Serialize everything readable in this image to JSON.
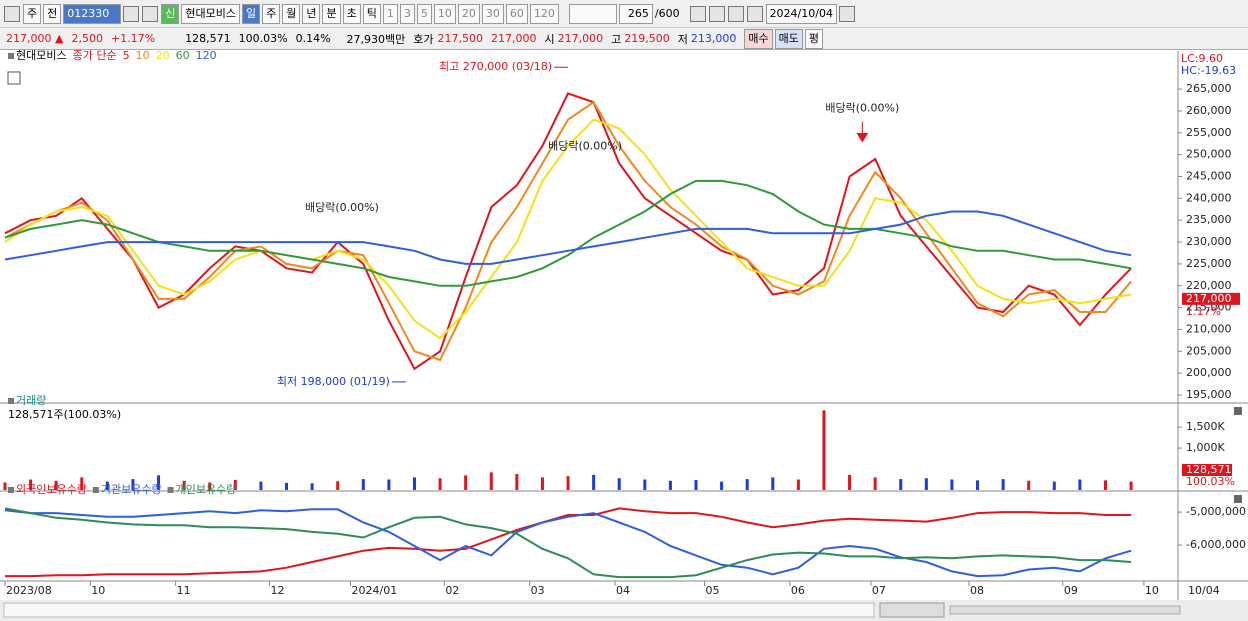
{
  "toolbar": {
    "view": "주",
    "market": "전",
    "code": "012330",
    "badge": "신",
    "name": "현대모비스",
    "periods": [
      "일",
      "주",
      "월",
      "년",
      "분",
      "초",
      "틱"
    ],
    "intervals": [
      "1",
      "3",
      "5",
      "10",
      "20",
      "30",
      "60",
      "120"
    ],
    "count": "265",
    "max": "/600",
    "date": "2024/10/04"
  },
  "quote": {
    "price": "217,000 ▲",
    "change": "2,500",
    "rate": "+1.17%",
    "volume": "128,571",
    "volume_ratio": "100.03%",
    "turnover": "0.14%",
    "amount": "27,930백만",
    "bid_label": "호가",
    "ask": "217,500",
    "bid": "217,000",
    "open_label": "시",
    "open": "217,000",
    "high_label": "고",
    "high": "219,500",
    "low_label": "저",
    "low": "213,000",
    "buy": "매수",
    "sell": "매도",
    "avg": "평"
  },
  "chart_data": [
    {
      "type": "line",
      "title": "현대모비스",
      "subtitle": "종가 단순",
      "lc": "LC:9.60",
      "hc": "HC:-19.63",
      "x": [
        0,
        6,
        12,
        18,
        24,
        30,
        36,
        42,
        48,
        54,
        60,
        66,
        72,
        78,
        84,
        90,
        96,
        102,
        108,
        114,
        120,
        126,
        132,
        138,
        144,
        150,
        156,
        162,
        168,
        174,
        180,
        186,
        192,
        198,
        204,
        210,
        216,
        222,
        228,
        234,
        240,
        246,
        252,
        258,
        264
      ],
      "xlim": [
        0,
        275
      ],
      "ylim": [
        193400,
        271200
      ],
      "yticks": [
        {
          "value": 195000,
          "label": "195,000"
        },
        {
          "value": 200000,
          "label": "200,000"
        },
        {
          "value": 205000,
          "label": "205,000"
        },
        {
          "value": 210000,
          "label": "210,000"
        },
        {
          "value": 215000,
          "label": "215,000"
        },
        {
          "value": 220000,
          "label": "220,000"
        },
        {
          "value": 225000,
          "label": "225,000"
        },
        {
          "value": 230000,
          "label": "230,000"
        },
        {
          "value": 235000,
          "label": "235,000"
        },
        {
          "value": 240000,
          "label": "240,000"
        },
        {
          "value": 245000,
          "label": "245,000"
        },
        {
          "value": 250000,
          "label": "250,000"
        },
        {
          "value": 255000,
          "label": "255,000"
        },
        {
          "value": 260000,
          "label": "260,000"
        },
        {
          "value": 265000,
          "label": "265,000"
        }
      ],
      "series": [
        {
          "name": "5",
          "color": "#e0141e",
          "values": [
            232000,
            235000,
            236000,
            240000,
            233000,
            226000,
            215000,
            218000,
            224000,
            229000,
            228000,
            224000,
            223000,
            230000,
            225000,
            212000,
            201000,
            205000,
            222000,
            238000,
            243000,
            252000,
            264000,
            262000,
            248000,
            240000,
            236000,
            232000,
            228000,
            226000,
            218000,
            219000,
            224000,
            245000,
            249000,
            236000,
            229000,
            222000,
            215000,
            214000,
            220000,
            218000,
            211000,
            218000,
            224000
          ]
        },
        {
          "name": "10",
          "color": "#f0881e",
          "values": [
            231000,
            234000,
            237000,
            239000,
            235000,
            226000,
            217000,
            217000,
            222000,
            228000,
            229000,
            225000,
            224000,
            228000,
            227000,
            216000,
            205000,
            203000,
            215000,
            230000,
            238000,
            248000,
            258000,
            262000,
            252000,
            244000,
            238000,
            234000,
            229000,
            226000,
            220000,
            218000,
            221000,
            236000,
            246000,
            240000,
            232000,
            224000,
            216000,
            213000,
            218000,
            219000,
            214000,
            214000,
            221000
          ]
        },
        {
          "name": "20",
          "color": "#f2e21a",
          "values": [
            230000,
            234000,
            237000,
            238000,
            236000,
            228000,
            220000,
            218000,
            221000,
            226000,
            228000,
            227000,
            226000,
            228000,
            226000,
            220000,
            212000,
            208000,
            214000,
            222000,
            230000,
            244000,
            252000,
            258000,
            256000,
            250000,
            242000,
            236000,
            230000,
            224000,
            222000,
            220000,
            220000,
            228000,
            240000,
            239000,
            235000,
            228000,
            220000,
            217000,
            216000,
            217000,
            216000,
            217000,
            218000
          ]
        },
        {
          "name": "60",
          "color": "#2e9a3c",
          "values": [
            231000,
            233000,
            234000,
            235000,
            234000,
            232000,
            230000,
            229000,
            228000,
            228000,
            228000,
            227000,
            226000,
            225000,
            224000,
            222000,
            221000,
            220000,
            220000,
            221000,
            222000,
            224000,
            227000,
            231000,
            234000,
            237000,
            241000,
            244000,
            244000,
            243000,
            241000,
            237000,
            234000,
            233000,
            233000,
            232000,
            231000,
            229000,
            228000,
            228000,
            227000,
            226000,
            226000,
            225000,
            224000
          ]
        },
        {
          "name": "120",
          "color": "#2f5ee0",
          "values": [
            226000,
            227000,
            228000,
            229000,
            230000,
            230000,
            230000,
            230000,
            230000,
            230000,
            230000,
            230000,
            230000,
            230000,
            230000,
            229000,
            228000,
            226000,
            225000,
            225000,
            226000,
            227000,
            228000,
            229000,
            230000,
            231000,
            232000,
            233000,
            233000,
            233000,
            232000,
            232000,
            232000,
            232000,
            233000,
            234000,
            236000,
            237000,
            237000,
            236000,
            234000,
            232000,
            230000,
            228000,
            227000
          ]
        }
      ],
      "annotations": [
        {
          "text": "최고 270,000 (03/18)",
          "x": 132,
          "y": 270000,
          "arrow": "right"
        },
        {
          "text": "최저 198,000 (01/19)",
          "x": 94,
          "y": 198000,
          "arrow": "right"
        },
        {
          "text": "배당락(0.00%)",
          "x": 79,
          "y": 236000,
          "arrow": "none"
        },
        {
          "text": "배당락(0.00%)",
          "x": 136,
          "y": 250000,
          "arrow": "none"
        },
        {
          "text": "배당락(0.00%)",
          "x": 201,
          "y": 253000,
          "arrow": "down"
        }
      ],
      "current": {
        "value": 217000,
        "label": "217,000",
        "change": "1.17%"
      }
    },
    {
      "type": "bar",
      "title": "거래량",
      "subtitle": "128,571주(100.03%)",
      "up_color": "#e0141e",
      "down_color": "#1e3cd2",
      "x": [
        0,
        6,
        12,
        18,
        24,
        30,
        36,
        42,
        48,
        54,
        60,
        66,
        72,
        78,
        84,
        90,
        96,
        102,
        108,
        114,
        120,
        126,
        132,
        138,
        144,
        150,
        156,
        162,
        168,
        174,
        180,
        186,
        192,
        198,
        204,
        210,
        216,
        222,
        228,
        234,
        240,
        246,
        252,
        258,
        264
      ],
      "xlim": [
        0,
        275
      ],
      "ylim": [
        0,
        1980000
      ],
      "yticks": [
        {
          "value": 1000000,
          "label": "1,000K"
        },
        {
          "value": 1500000,
          "label": "1,500K"
        }
      ],
      "values": [
        180000,
        250000,
        220000,
        300000,
        200000,
        260000,
        350000,
        220000,
        180000,
        240000,
        200000,
        170000,
        160000,
        210000,
        260000,
        250000,
        300000,
        280000,
        350000,
        420000,
        380000,
        300000,
        330000,
        360000,
        280000,
        250000,
        220000,
        240000,
        200000,
        260000,
        300000,
        250000,
        1900000,
        360000,
        300000,
        260000,
        280000,
        250000,
        230000,
        260000,
        220000,
        200000,
        250000,
        230000,
        200000
      ],
      "current": {
        "value": 128571,
        "label": "128,571",
        "change": "100.03%"
      }
    },
    {
      "type": "line",
      "x": [
        0,
        6,
        12,
        18,
        24,
        30,
        36,
        42,
        48,
        54,
        60,
        66,
        72,
        78,
        84,
        90,
        96,
        102,
        108,
        114,
        120,
        126,
        132,
        138,
        144,
        150,
        156,
        162,
        168,
        174,
        180,
        186,
        192,
        198,
        204,
        210,
        216,
        222,
        228,
        234,
        240,
        246,
        252,
        258,
        264
      ],
      "xlim": [
        0,
        275
      ],
      "ylim": [
        -7030000,
        -4510000
      ],
      "yticks": [
        {
          "value": -6000000,
          "label": "-6,000,000"
        },
        {
          "value": -5000000,
          "label": "-5,000,000"
        }
      ],
      "xticks": [
        {
          "value": 0,
          "label": "2023/08"
        },
        {
          "value": 20,
          "label": "10"
        },
        {
          "value": 40,
          "label": "11"
        },
        {
          "value": 62,
          "label": "12"
        },
        {
          "value": 81,
          "label": "2024/01"
        },
        {
          "value": 103,
          "label": "02"
        },
        {
          "value": 123,
          "label": "03"
        },
        {
          "value": 143,
          "label": "04"
        },
        {
          "value": 164,
          "label": "05"
        },
        {
          "value": 184,
          "label": "06"
        },
        {
          "value": 203,
          "label": "07"
        },
        {
          "value": 226,
          "label": "08"
        },
        {
          "value": 248,
          "label": "09"
        },
        {
          "value": 267,
          "label": "10"
        }
      ],
      "x_end_label": "10/04",
      "series": [
        {
          "name": "외국인보유수량",
          "color": "#e0141e",
          "values": [
            -6943000,
            -6943000,
            -6914000,
            -6914000,
            -6886000,
            -6886000,
            -6886000,
            -6886000,
            -6857000,
            -6829000,
            -6800000,
            -6686000,
            -6514000,
            -6343000,
            -6171000,
            -6086000,
            -6114000,
            -6171000,
            -6114000,
            -5829000,
            -5543000,
            -5314000,
            -5086000,
            -5086000,
            -4886000,
            -4971000,
            -5029000,
            -5029000,
            -5143000,
            -5314000,
            -5457000,
            -5371000,
            -5257000,
            -5200000,
            -5229000,
            -5257000,
            -5286000,
            -5171000,
            -5029000,
            -5000000,
            -5000000,
            -5029000,
            -5029000,
            -5086000,
            -5086000
          ]
        },
        {
          "name": "기관보유수량",
          "color": "#2f5ee0",
          "values": [
            -4943000,
            -5029000,
            -5029000,
            -5086000,
            -5143000,
            -5143000,
            -5086000,
            -5029000,
            -4971000,
            -5029000,
            -4943000,
            -4971000,
            -4914000,
            -4914000,
            -5314000,
            -5600000,
            -6029000,
            -6457000,
            -6029000,
            -6314000,
            -5600000,
            -5314000,
            -5143000,
            -5029000,
            -5314000,
            -5600000,
            -6029000,
            -6314000,
            -6600000,
            -6686000,
            -6886000,
            -6686000,
            -6114000,
            -6029000,
            -6114000,
            -6371000,
            -6514000,
            -6800000,
            -6943000,
            -6914000,
            -6743000,
            -6686000,
            -6800000,
            -6400000,
            -6171000
          ]
        },
        {
          "name": "개인보유수량",
          "color": "#2e8b57",
          "values": [
            -4886000,
            -5029000,
            -5171000,
            -5229000,
            -5314000,
            -5371000,
            -5400000,
            -5400000,
            -5457000,
            -5457000,
            -5486000,
            -5514000,
            -5600000,
            -5657000,
            -5771000,
            -5457000,
            -5171000,
            -5143000,
            -5371000,
            -5486000,
            -5657000,
            -6114000,
            -6400000,
            -6886000,
            -6971000,
            -6971000,
            -6971000,
            -6914000,
            -6686000,
            -6457000,
            -6286000,
            -6229000,
            -6257000,
            -6343000,
            -6343000,
            -6400000,
            -6371000,
            -6400000,
            -6343000,
            -6314000,
            -6343000,
            -6371000,
            -6457000,
            -6457000,
            -6514000
          ]
        }
      ]
    }
  ]
}
